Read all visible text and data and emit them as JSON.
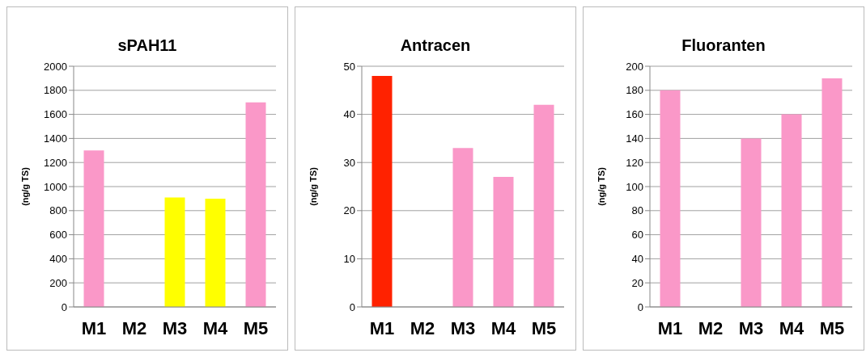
{
  "chart_data": [
    {
      "type": "bar",
      "title": "sPAH11",
      "ylabel": "(ng/g TS)",
      "categories": [
        "M1",
        "M2",
        "M3",
        "M4",
        "M5"
      ],
      "values": [
        1300,
        null,
        910,
        900,
        1700
      ],
      "colors": [
        "#fa98c8",
        "#fa98c8",
        "#ffff00",
        "#ffff00",
        "#fa98c8"
      ],
      "ylim": [
        0,
        2000
      ],
      "yticks": [
        0,
        200,
        400,
        600,
        800,
        1000,
        1200,
        1400,
        1600,
        1800,
        2000
      ],
      "grid": "y"
    },
    {
      "type": "bar",
      "title": "Antracen",
      "ylabel": "(ng/g TS)",
      "categories": [
        "M1",
        "M2",
        "M3",
        "M4",
        "M5"
      ],
      "values": [
        48,
        null,
        33,
        27,
        42
      ],
      "colors": [
        "#ff2200",
        "#fa98c8",
        "#fa98c8",
        "#fa98c8",
        "#fa98c8"
      ],
      "ylim": [
        0,
        50
      ],
      "yticks": [
        0,
        10,
        20,
        30,
        40,
        50
      ],
      "grid": "y"
    },
    {
      "type": "bar",
      "title": "Fluoranten",
      "ylabel": "(ng/g TS)",
      "categories": [
        "M1",
        "M2",
        "M3",
        "M4",
        "M5"
      ],
      "values": [
        180,
        null,
        140,
        160,
        190
      ],
      "colors": [
        "#fa98c8",
        "#fa98c8",
        "#fa98c8",
        "#fa98c8",
        "#fa98c8"
      ],
      "ylim": [
        0,
        200
      ],
      "yticks": [
        0,
        20,
        40,
        60,
        80,
        100,
        120,
        140,
        160,
        180,
        200
      ],
      "grid": "y"
    }
  ]
}
